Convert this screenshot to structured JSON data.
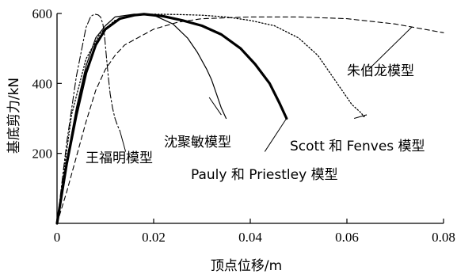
{
  "chart_data": {
    "type": "line",
    "xlabel": "顶点位移/m",
    "ylabel": "基底剪力/kN",
    "xlim": [
      0,
      0.08
    ],
    "ylim": [
      0,
      600
    ],
    "xticks": [
      0,
      0.02,
      0.04,
      0.06,
      0.08
    ],
    "xtick_labels": [
      "0",
      "0.02",
      "0.04",
      "0.06",
      "0.08"
    ],
    "yticks": [
      200,
      400,
      600
    ],
    "ytick_labels": [
      "200",
      "400",
      "600"
    ],
    "grid": false,
    "legend": "none",
    "series": [
      {
        "name": "王福明模型",
        "style": "dashdot",
        "x": [
          0,
          0.002,
          0.004,
          0.006,
          0.007,
          0.0078,
          0.0085,
          0.009,
          0.0095,
          0.0098,
          0.0102,
          0.0106,
          0.011,
          0.0115,
          0.012,
          0.0125,
          0.013
        ],
        "y": [
          0,
          230,
          420,
          560,
          592,
          598,
          596,
          590,
          570,
          540,
          480,
          420,
          370,
          330,
          300,
          280,
          265
        ]
      },
      {
        "name": "沈聚敏模型",
        "style": "solid",
        "x": [
          0,
          0.002,
          0.004,
          0.006,
          0.008,
          0.01,
          0.012,
          0.016,
          0.02,
          0.024,
          0.027,
          0.029,
          0.031,
          0.032,
          0.033,
          0.034,
          0.035
        ],
        "y": [
          0,
          180,
          330,
          450,
          530,
          565,
          590,
          598,
          595,
          570,
          530,
          490,
          440,
          410,
          370,
          330,
          300
        ]
      },
      {
        "name": "Pauly 和 Priestley 模型",
        "style": "thick",
        "x": [
          0,
          0.002,
          0.004,
          0.006,
          0.008,
          0.01,
          0.013,
          0.016,
          0.018,
          0.022,
          0.026,
          0.03,
          0.034,
          0.038,
          0.041,
          0.044,
          0.046,
          0.0475
        ],
        "y": [
          0,
          170,
          310,
          430,
          510,
          555,
          585,
          595,
          598,
          592,
          580,
          565,
          540,
          500,
          455,
          400,
          345,
          300
        ]
      },
      {
        "name": "Scott 和 Fenves 模型",
        "style": "dotted",
        "x": [
          0,
          0.003,
          0.006,
          0.009,
          0.012,
          0.016,
          0.02,
          0.025,
          0.03,
          0.035,
          0.04,
          0.045,
          0.05,
          0.054,
          0.058,
          0.061,
          0.063,
          0.0635,
          0.064
        ],
        "y": [
          0,
          310,
          470,
          545,
          580,
          595,
          598,
          597,
          595,
          590,
          580,
          565,
          530,
          480,
          400,
          340,
          315,
          305,
          310
        ]
      },
      {
        "name": "朱伯龙模型",
        "style": "dashed",
        "x": [
          0,
          0.002,
          0.004,
          0.006,
          0.008,
          0.01,
          0.012,
          0.014,
          0.016,
          0.018,
          0.02,
          0.025,
          0.03,
          0.04,
          0.05,
          0.06,
          0.07,
          0.08
        ],
        "y": [
          0,
          90,
          190,
          290,
          380,
          440,
          480,
          510,
          525,
          540,
          555,
          575,
          585,
          590,
          590,
          585,
          570,
          545
        ]
      }
    ],
    "annotations": [
      {
        "text": "王福明模型",
        "series": 0
      },
      {
        "text": "沈聚敏模型",
        "series": 1
      },
      {
        "text": "Pauly 和 Priestley 模型",
        "series": 2
      },
      {
        "text": "Scott 和 Fenves 模型",
        "series": 3
      },
      {
        "text": "朱伯龙模型",
        "series": 4
      }
    ]
  }
}
